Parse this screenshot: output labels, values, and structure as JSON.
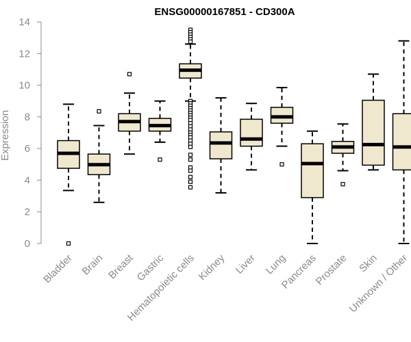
{
  "chart_data": {
    "type": "boxplot",
    "title": "ENSG00000167851 - CD300A",
    "xlabel": "",
    "ylabel": "Expression",
    "ylim": [
      0,
      14
    ],
    "yticks": [
      0,
      2,
      4,
      6,
      8,
      10,
      12,
      14
    ],
    "grid": false,
    "box_color": "#efe8cf",
    "categories": [
      "Bladder",
      "Brain",
      "Breast",
      "Gastric",
      "Hematopoietic cells",
      "Kidney",
      "Liver",
      "Lung",
      "Pancreas",
      "Prostate",
      "Skin",
      "Unknown / Other"
    ],
    "boxes": [
      {
        "min": 3.35,
        "q1": 4.75,
        "median": 5.7,
        "q3": 6.5,
        "max": 8.8,
        "outliers": [
          0.0
        ]
      },
      {
        "min": 2.6,
        "q1": 4.35,
        "median": 4.98,
        "q3": 5.65,
        "max": 7.45,
        "outliers": [
          8.35
        ]
      },
      {
        "min": 5.65,
        "q1": 7.1,
        "median": 7.7,
        "q3": 8.2,
        "max": 9.5,
        "outliers": [
          10.7
        ]
      },
      {
        "min": 6.4,
        "q1": 7.1,
        "median": 7.45,
        "q3": 7.9,
        "max": 9.0,
        "outliers": [
          5.3
        ]
      },
      {
        "min": 9.0,
        "q1": 10.45,
        "median": 10.95,
        "q3": 11.35,
        "max": 12.6,
        "outliers": [
          13.5,
          13.35,
          13.2,
          13.05,
          12.9,
          12.75,
          9.0,
          8.85,
          8.7,
          8.55,
          8.4,
          8.25,
          8.1,
          7.95,
          7.8,
          7.6,
          7.4,
          7.2,
          7.0,
          6.85,
          6.7,
          6.5,
          6.3,
          6.1,
          5.6,
          5.3,
          4.8,
          4.6,
          4.2,
          3.9,
          3.55
        ]
      },
      {
        "min": 3.2,
        "q1": 5.35,
        "median": 6.35,
        "q3": 7.05,
        "max": 9.2,
        "outliers": []
      },
      {
        "min": 4.65,
        "q1": 6.15,
        "median": 6.6,
        "q3": 7.85,
        "max": 8.85,
        "outliers": []
      },
      {
        "min": 6.15,
        "q1": 7.6,
        "median": 8.0,
        "q3": 8.6,
        "max": 9.85,
        "outliers": [
          5.0
        ]
      },
      {
        "min": 0.0,
        "q1": 2.9,
        "median": 5.05,
        "q3": 6.3,
        "max": 7.1,
        "outliers": []
      },
      {
        "min": 4.6,
        "q1": 5.7,
        "median": 6.1,
        "q3": 6.45,
        "max": 7.55,
        "outliers": [
          3.75
        ]
      },
      {
        "min": 4.65,
        "q1": 4.95,
        "median": 6.25,
        "q3": 9.05,
        "max": 10.7,
        "outliers": []
      },
      {
        "min": 0.0,
        "q1": 4.65,
        "median": 6.1,
        "q3": 8.2,
        "max": 12.8,
        "outliers": []
      }
    ]
  }
}
